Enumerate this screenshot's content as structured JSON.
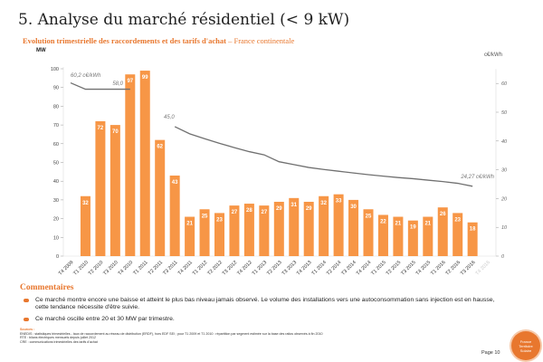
{
  "title": "5. Analyse du marché résidentiel (< 9 kW)",
  "subtitle": "Evolution trimestrielle des raccordements et des tarifs d'achat",
  "subtitle_region": " – France continentale",
  "chart_data": {
    "type": "bar+line",
    "categories": [
      "T4 2009",
      "T1 2010",
      "T2 2010",
      "T3 2010",
      "T4 2010",
      "T1 2011",
      "T2 2011",
      "T3 2011",
      "T4 2011",
      "T1 2012",
      "T2 2012",
      "T3 2012",
      "T4 2012",
      "T1 2013",
      "T2 2013",
      "T3 2013",
      "T4 2013",
      "T1 2014",
      "T2 2014",
      "T3 2014",
      "T4 2014",
      "T1 2015",
      "T2 2015",
      "T3 2015",
      "T4 2015",
      "T1 2016",
      "T2 2016",
      "T3 2016",
      "T4 2016"
    ],
    "bar_values": [
      null,
      32,
      72,
      70,
      97,
      99,
      62,
      43,
      21,
      25,
      23,
      27,
      28,
      27,
      29,
      31,
      29,
      32,
      33,
      30,
      25,
      22,
      21,
      19,
      21,
      26,
      23,
      18,
      null
    ],
    "line_values": [
      60.2,
      58,
      58,
      58,
      58,
      null,
      null,
      45,
      42.5,
      40.8,
      39.2,
      37.7,
      36.3,
      35.2,
      32.8,
      31.8,
      30.8,
      30.1,
      29.5,
      28.9,
      28.3,
      27.8,
      27.3,
      26.9,
      26.4,
      25.9,
      25.3,
      24.27,
      null
    ],
    "line_labels": [
      "60,2 c€/kWh",
      "58,0",
      "45,0",
      "24,27 c€/kWh"
    ],
    "ylabel_left": "MW",
    "ylabel_right": "c€/kWh",
    "ylim_left": [
      0,
      100
    ],
    "yticks_left": [
      0,
      10,
      20,
      30,
      40,
      50,
      60,
      70,
      80,
      90,
      100
    ],
    "ylim_right": [
      0,
      65
    ],
    "yticks_right": [
      0,
      10,
      20,
      30,
      40,
      50,
      60
    ],
    "bar_color": "#f79646",
    "line_color": "#707070",
    "grid": false,
    "faded_category": "T4 2016"
  },
  "comments": {
    "title": "Commentaires",
    "items": [
      "Ce marché montre encore une baisse et atteint le plus bas niveau jamais observé. Le volume des installations vers une autoconsommation sans injection est en hausse, cette tendance nécessite d'être suivie.",
      "Ce marché oscille entre 20 et 30 MW par trimestre."
    ]
  },
  "sources": {
    "title": "Sources :",
    "lines": [
      "ENEDIS : statistiques trimestrielles - taux de raccordement au réseau de distribution (ERDF), hors EDF SEI ; pour T1 2009 et T1 2010 : répartition par segment estimée sur la base des ratios observés à fin 2010",
      "RTE : bilans électriques mensuels depuis juillet 2012",
      "CRE : communications trimestrielles des tarifs d'achat"
    ]
  },
  "page": "Page 10",
  "logo": [
    "France",
    "Territoire",
    "Solaire"
  ]
}
